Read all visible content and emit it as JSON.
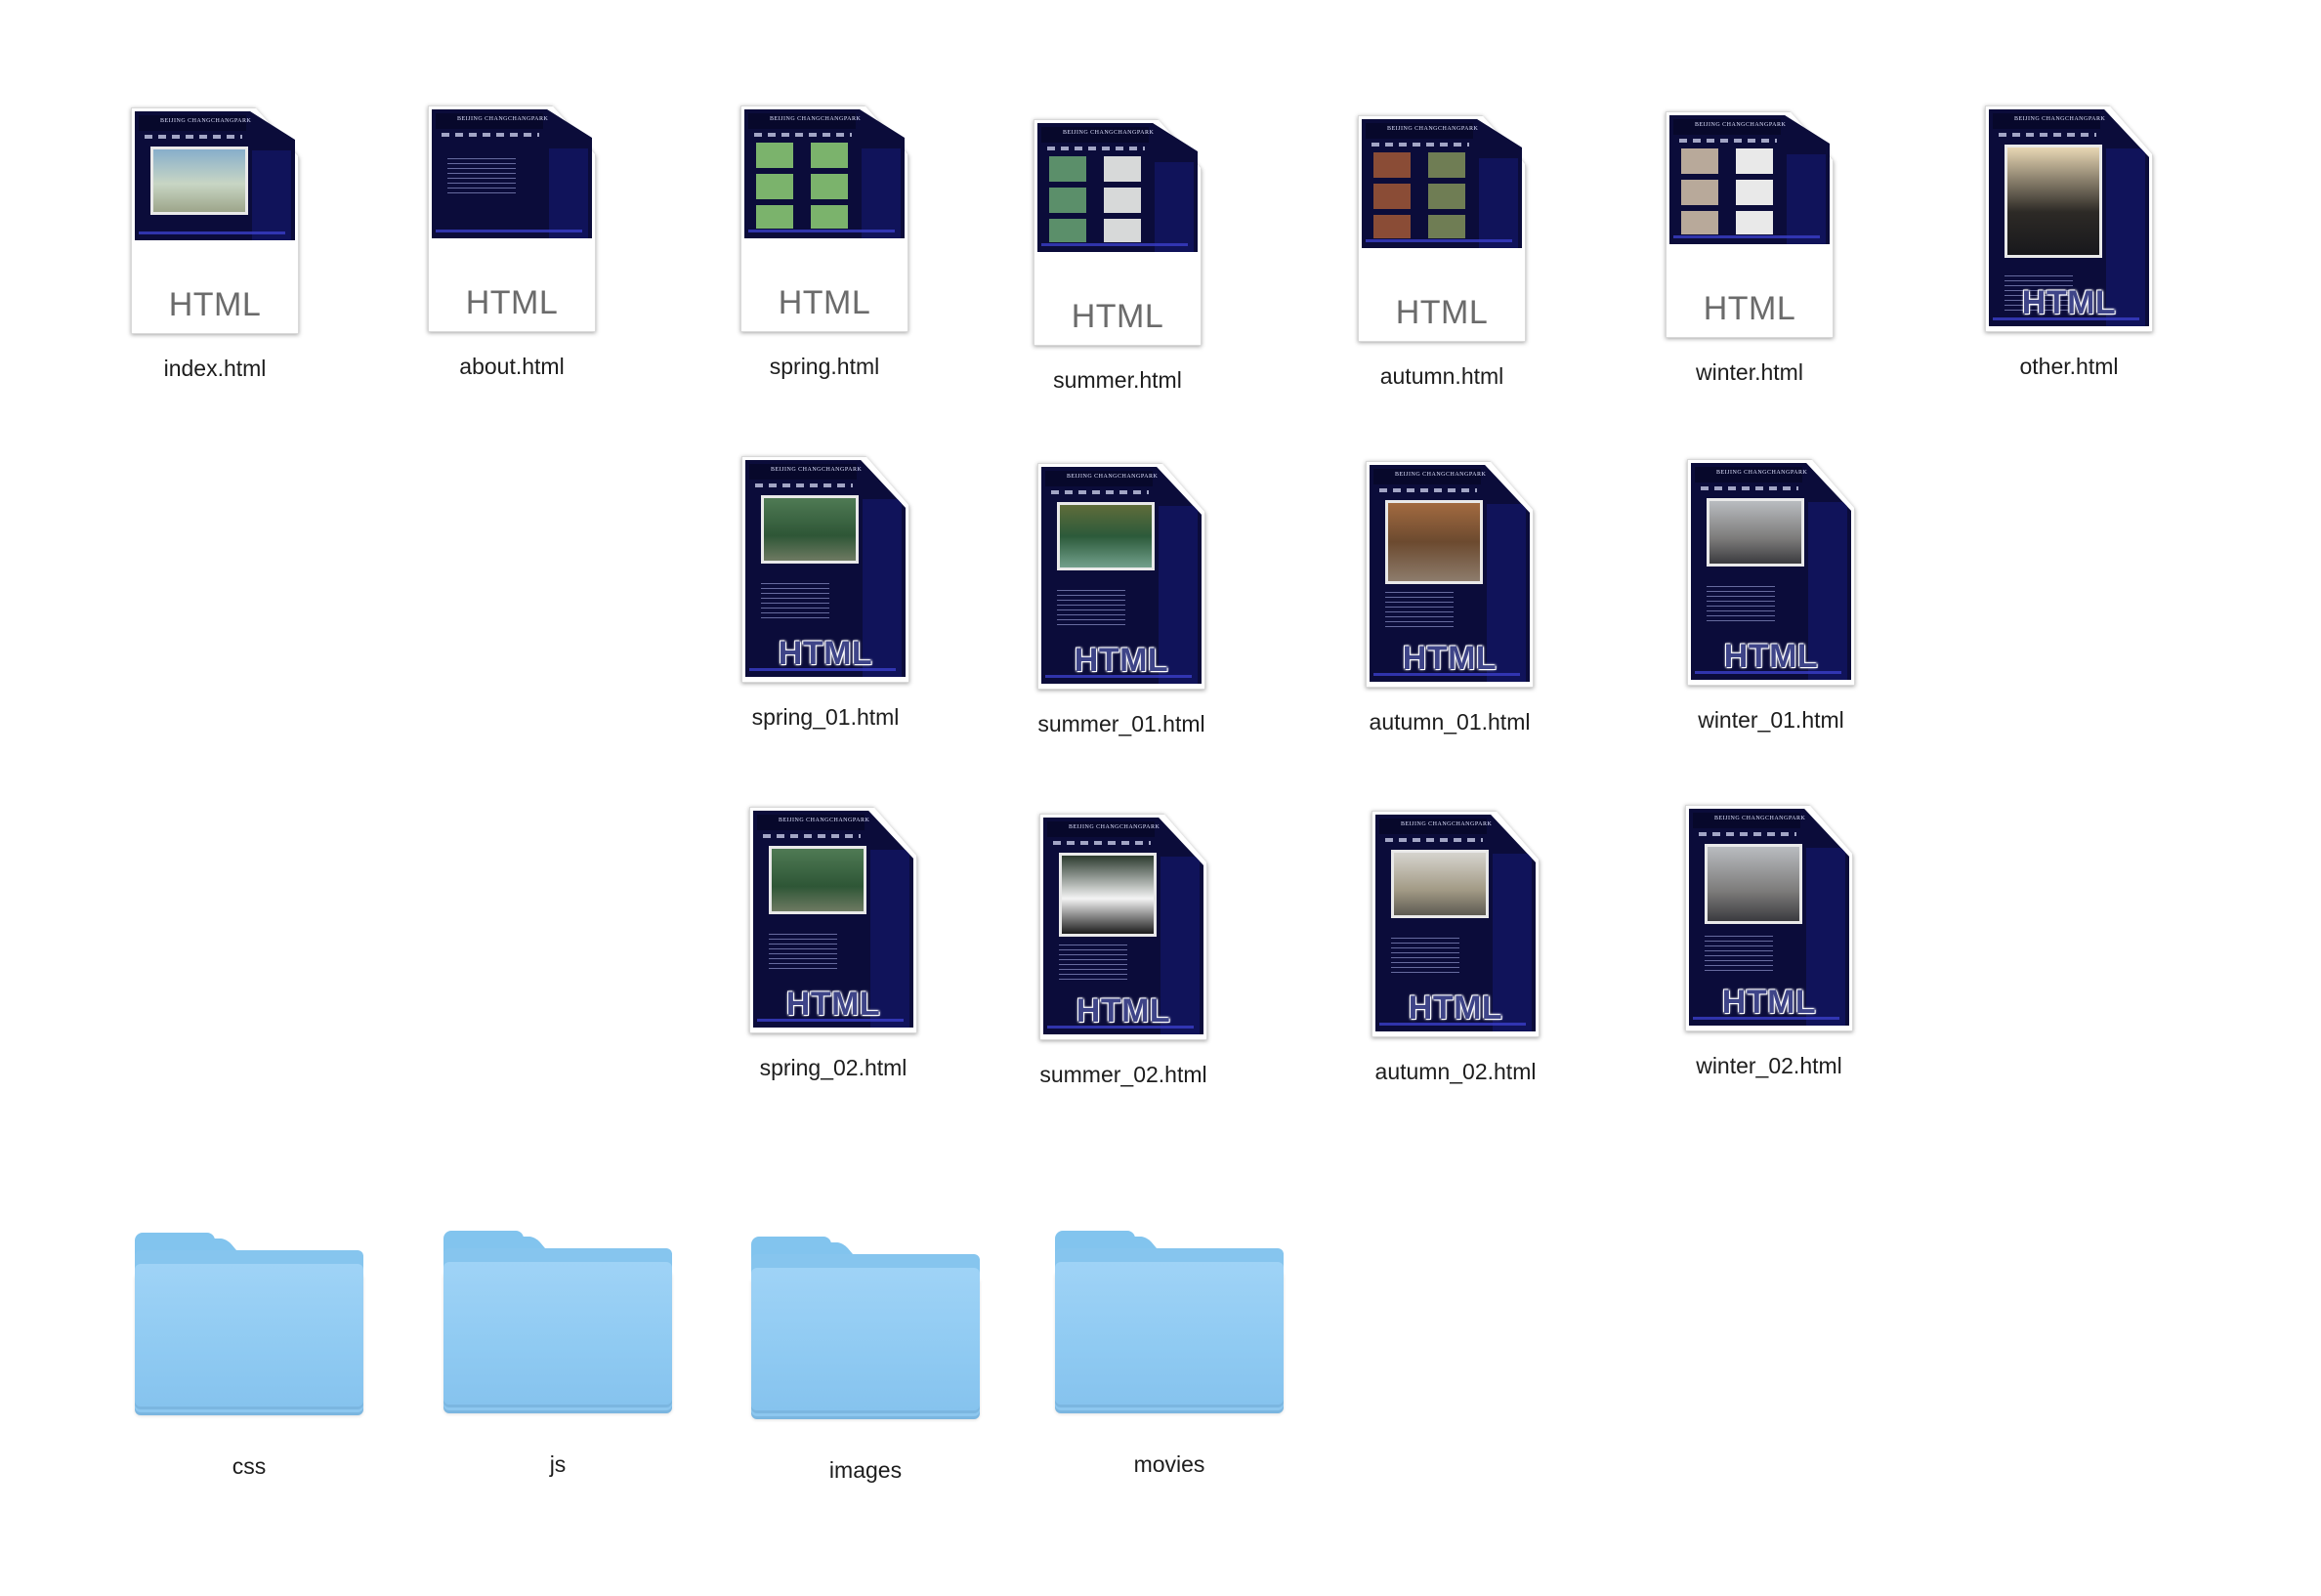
{
  "files_row1": [
    {
      "name": "index.html",
      "badge": "HTML",
      "x": 0,
      "y": 0
    },
    {
      "name": "about.html",
      "badge": "HTML"
    },
    {
      "name": "spring.html",
      "badge": "HTML"
    },
    {
      "name": "summer.html",
      "badge": "HTML"
    },
    {
      "name": "autumn.html",
      "badge": "HTML"
    },
    {
      "name": "winter.html",
      "badge": "HTML"
    },
    {
      "name": "other.html",
      "badge": "HTML"
    }
  ],
  "files_row2": [
    {
      "name": "spring_01.html",
      "badge": "HTML"
    },
    {
      "name": "summer_01.html",
      "badge": "HTML"
    },
    {
      "name": "autumn_01.html",
      "badge": "HTML"
    },
    {
      "name": "winter_01.html",
      "badge": "HTML"
    }
  ],
  "files_row3": [
    {
      "name": "spring_02.html",
      "badge": "HTML"
    },
    {
      "name": "summer_02.html",
      "badge": "HTML"
    },
    {
      "name": "autumn_02.html",
      "badge": "HTML"
    },
    {
      "name": "winter_02.html",
      "badge": "HTML"
    }
  ],
  "folders": [
    {
      "name": "css"
    },
    {
      "name": "js"
    },
    {
      "name": "images"
    },
    {
      "name": "movies"
    }
  ],
  "thumb_header_text": "BEIJING CHANGCHANGPARK",
  "colors": {
    "folder": "#86c5ee",
    "page_bg": "#0b0c3a",
    "badge": "#6b6b6b"
  }
}
